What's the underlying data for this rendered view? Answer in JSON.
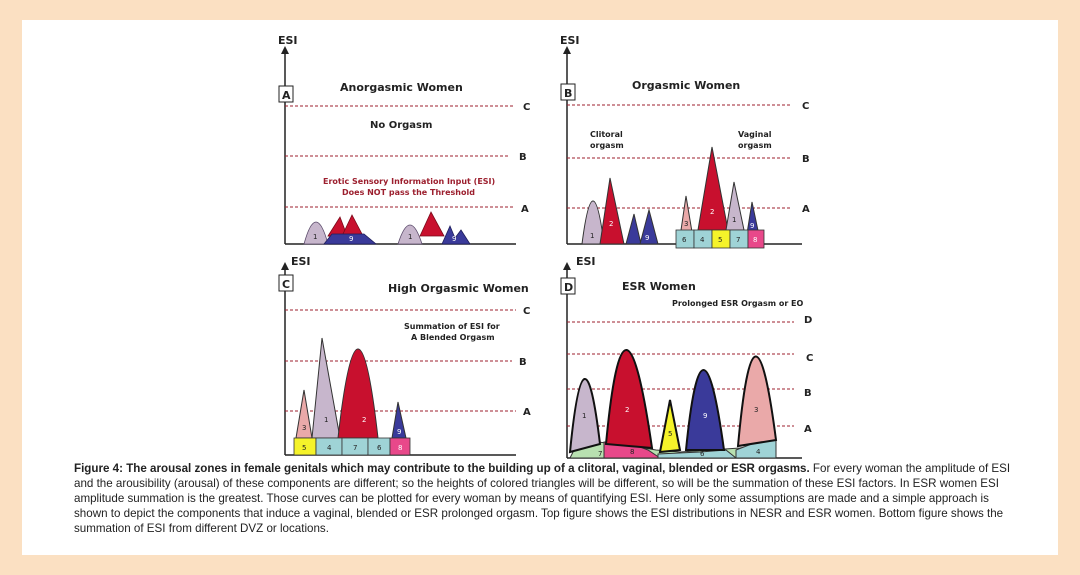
{
  "figure": {
    "y_axis_label": "ESI",
    "colors": {
      "crimson": "#c8102e",
      "navy": "#3a3a9a",
      "lilac": "#c7b6cc",
      "pink": "#eaa9a9",
      "yellow": "#f5f32a",
      "teal": "#9fd3d6",
      "light_green": "#b8e0b0",
      "magenta": "#e8488a",
      "threshold": "#9c1f2e"
    },
    "panels": {
      "A": {
        "letter": "A",
        "title": "Anorgasmic Women",
        "note1": "No Orgasm",
        "note2": "Erotic Sensory Information Input (ESI)",
        "note3": "Does NOT pass the Threshold",
        "levels": [
          "C",
          "B",
          "A"
        ],
        "peak_labels": [
          "1",
          "9",
          "1",
          "9"
        ]
      },
      "B": {
        "letter": "B",
        "title": "Orgasmic Women",
        "note_left_1": "Clitoral",
        "note_left_2": "orgasm",
        "note_right_1": "Vaginal",
        "note_right_2": "orgasm",
        "levels": [
          "C",
          "B",
          "A"
        ],
        "peak_labels": [
          "1",
          "2",
          "9",
          "3",
          "2",
          "1",
          "9"
        ],
        "boxes": [
          "6",
          "4",
          "5",
          "7",
          "8"
        ]
      },
      "C": {
        "letter": "C",
        "title": "High Orgasmic Women",
        "note1": "Summation of ESI for",
        "note2": "A Blended Orgasm",
        "levels": [
          "C",
          "B",
          "A"
        ],
        "peak_labels": [
          "3",
          "1",
          "2",
          "9"
        ],
        "boxes": [
          "5",
          "4",
          "7",
          "6",
          "8"
        ]
      },
      "D": {
        "letter": "D",
        "title": "ESR Women",
        "note1": "Prolonged ESR Orgasm or EO",
        "levels": [
          "D",
          "C",
          "B",
          "A"
        ],
        "peak_labels": [
          "1",
          "2",
          "5",
          "9",
          "3",
          "7",
          "8",
          "6",
          "4"
        ]
      }
    }
  },
  "caption": {
    "label": "Figure 4",
    "title": ": The arousal zones in female genitals which may contribute to the building up of a clitoral, vaginal, blended or ESR orgasms.",
    "body": " For every woman the amplitude of ESI and the arousibility (arousal) of these components are different; so the heights of colored triangles will be different, so will be the summation of these ESI factors. In ESR women ESI amplitude summation is the greatest. Those curves can be plotted for every woman by means of quantifying ESI. Here only some assumptions are made and a simple approach is shown to depict the components that induce a vaginal, blended or ESR prolonged orgasm. Top figure shows the ESI distributions in NESR and ESR women. Bottom figure shows the summation of ESI from different DVZ or locations."
  }
}
